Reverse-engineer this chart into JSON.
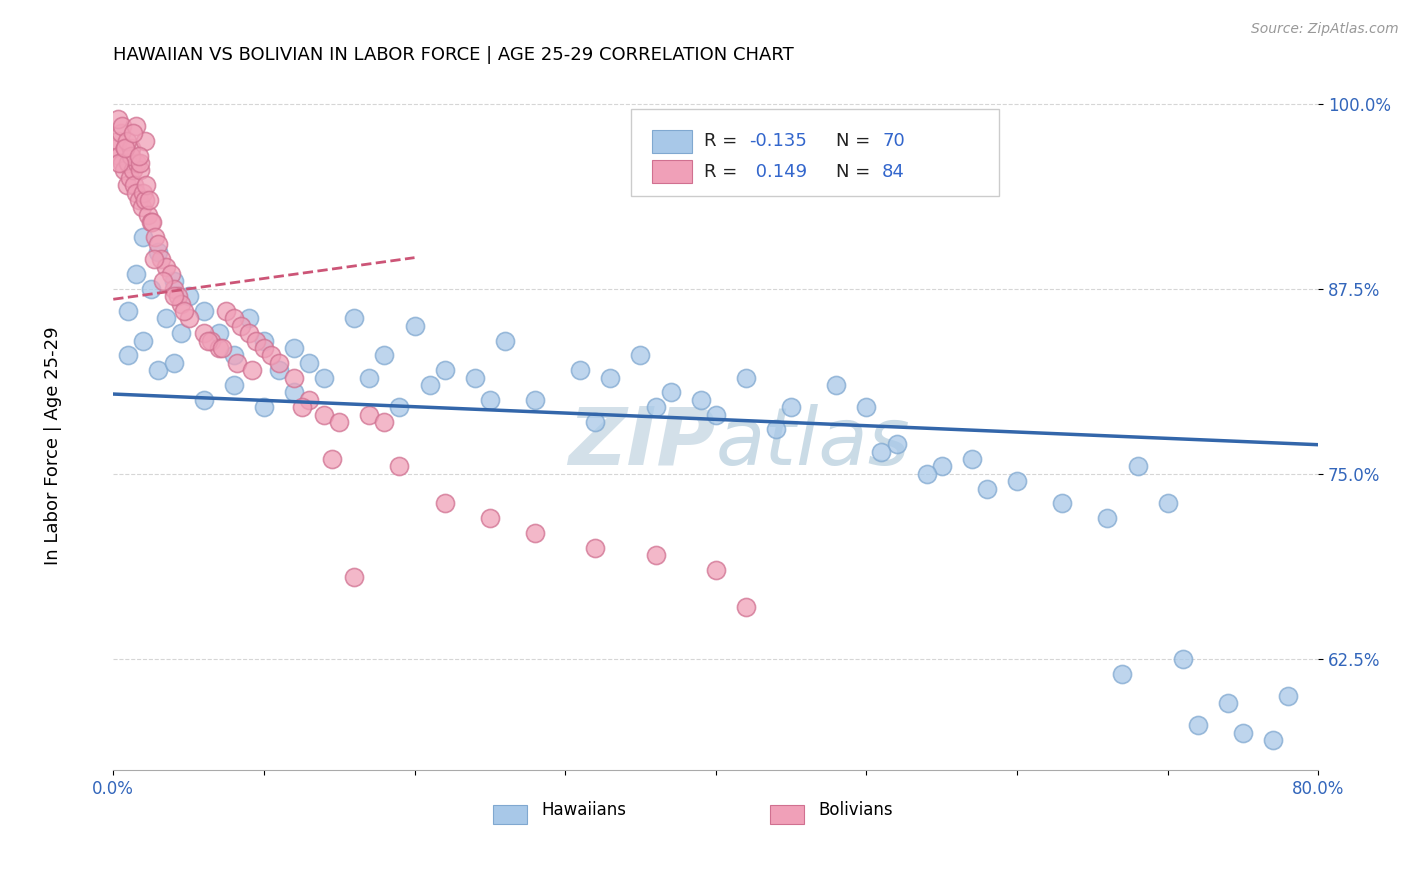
{
  "title": "HAWAIIAN VS BOLIVIAN IN LABOR FORCE | AGE 25-29 CORRELATION CHART",
  "source_text": "Source: ZipAtlas.com",
  "ylabel": "In Labor Force | Age 25-29",
  "xlim": [
    0.0,
    0.8
  ],
  "ylim": [
    0.55,
    1.02
  ],
  "yticks": [
    0.625,
    0.75,
    0.875,
    1.0
  ],
  "yticklabels": [
    "62.5%",
    "75.0%",
    "87.5%",
    "100.0%"
  ],
  "r_hawaiian": -0.135,
  "n_hawaiian": 70,
  "r_bolivian": 0.149,
  "n_bolivian": 84,
  "hawaiian_color": "#a8c8e8",
  "hawaiian_edge": "#80a8d0",
  "bolivian_color": "#f0a0b8",
  "bolivian_edge": "#d07090",
  "hawaiian_line_color": "#3366aa",
  "bolivian_line_color": "#cc5577",
  "haw_line_x0": 0.0,
  "haw_line_y0": 0.855,
  "haw_line_x1": 0.8,
  "haw_line_y1": 0.775,
  "bol_line_x0": 0.0,
  "bol_line_y0": 0.83,
  "bol_line_x1": 0.17,
  "bol_line_y1": 0.97
}
